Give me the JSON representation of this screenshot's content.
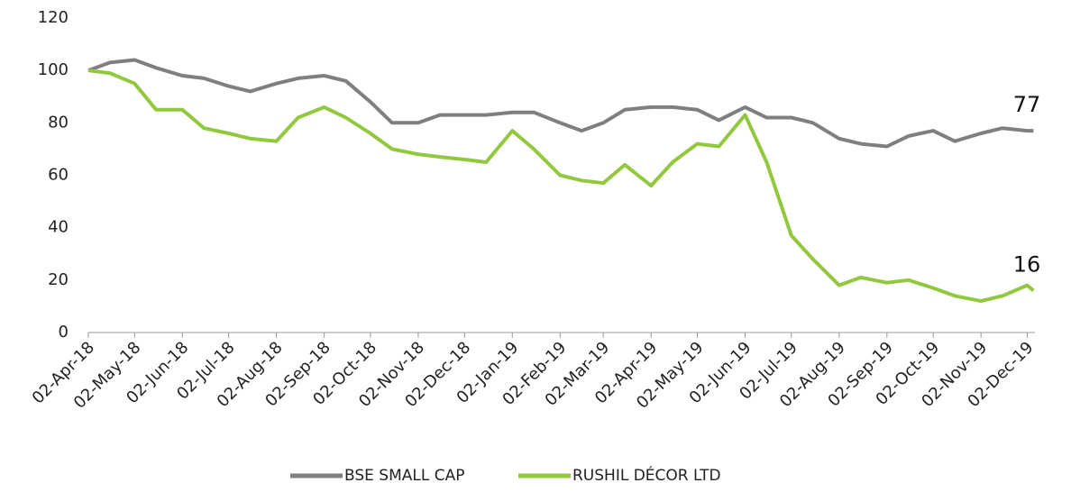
{
  "chart_data": {
    "type": "line",
    "x": [
      "2018-04-02",
      "2018-04-16",
      "2018-05-02",
      "2018-05-16",
      "2018-06-02",
      "2018-06-16",
      "2018-07-02",
      "2018-07-16",
      "2018-08-02",
      "2018-08-16",
      "2018-09-02",
      "2018-09-16",
      "2018-10-02",
      "2018-10-16",
      "2018-11-02",
      "2018-11-16",
      "2018-12-02",
      "2018-12-16",
      "2019-01-02",
      "2019-01-16",
      "2019-02-02",
      "2019-02-16",
      "2019-03-02",
      "2019-03-16",
      "2019-04-02",
      "2019-04-16",
      "2019-05-02",
      "2019-05-16",
      "2019-06-02",
      "2019-06-16",
      "2019-07-02",
      "2019-07-16",
      "2019-08-02",
      "2019-08-16",
      "2019-09-02",
      "2019-09-16",
      "2019-10-02",
      "2019-10-16",
      "2019-11-02",
      "2019-11-16",
      "2019-12-02",
      "2019-12-06"
    ],
    "series": [
      {
        "name": "BSE SMALL CAP",
        "color": "#7f7f7f",
        "end_label": "77",
        "values": [
          100,
          103,
          104,
          101,
          98,
          97,
          94,
          92,
          95,
          97,
          98,
          96,
          88,
          80,
          80,
          83,
          83,
          83,
          84,
          84,
          80,
          77,
          80,
          85,
          86,
          86,
          85,
          81,
          86,
          82,
          82,
          80,
          74,
          72,
          71,
          75,
          77,
          73,
          76,
          78,
          77,
          77
        ]
      },
      {
        "name": "RUSHIL DÉCOR LTD",
        "color": "#92c83e",
        "end_label": "16",
        "values": [
          100,
          99,
          95,
          85,
          85,
          78,
          76,
          74,
          73,
          82,
          86,
          82,
          76,
          70,
          68,
          67,
          66,
          65,
          77,
          70,
          60,
          58,
          57,
          64,
          56,
          65,
          72,
          71,
          83,
          65,
          37,
          28,
          18,
          21,
          19,
          20,
          17,
          14,
          12,
          14,
          18,
          16
        ]
      }
    ],
    "xlim": [
      "2018-04-02",
      "2019-12-07"
    ],
    "xticks": [
      {
        "value": "2018-04-02",
        "label": "02-Apr-18"
      },
      {
        "value": "2018-05-02",
        "label": "02-May-18"
      },
      {
        "value": "2018-06-02",
        "label": "02-Jun-18"
      },
      {
        "value": "2018-07-02",
        "label": "02-Jul-18"
      },
      {
        "value": "2018-08-02",
        "label": "02-Aug-18"
      },
      {
        "value": "2018-09-02",
        "label": "02-Sep-18"
      },
      {
        "value": "2018-10-02",
        "label": "02-Oct-18"
      },
      {
        "value": "2018-11-02",
        "label": "02-Nov-18"
      },
      {
        "value": "2018-12-02",
        "label": "02-Dec-18"
      },
      {
        "value": "2019-01-02",
        "label": "02-Jan-19"
      },
      {
        "value": "2019-02-02",
        "label": "02-Feb-19"
      },
      {
        "value": "2019-03-02",
        "label": "02-Mar-19"
      },
      {
        "value": "2019-04-02",
        "label": "02-Apr-19"
      },
      {
        "value": "2019-05-02",
        "label": "02-May-19"
      },
      {
        "value": "2019-06-02",
        "label": "02-Jun-19"
      },
      {
        "value": "2019-07-02",
        "label": "02-Jul-19"
      },
      {
        "value": "2019-08-02",
        "label": "02-Aug-19"
      },
      {
        "value": "2019-09-02",
        "label": "02-Sep-19"
      },
      {
        "value": "2019-10-02",
        "label": "02-Oct-19"
      },
      {
        "value": "2019-11-02",
        "label": "02-Nov-19"
      },
      {
        "value": "2019-12-02",
        "label": "02-Dec-19"
      }
    ],
    "ylim": [
      0,
      120
    ],
    "yticks": [
      0,
      20,
      40,
      60,
      80,
      100,
      120
    ],
    "grid": false,
    "legend": "bottom"
  }
}
